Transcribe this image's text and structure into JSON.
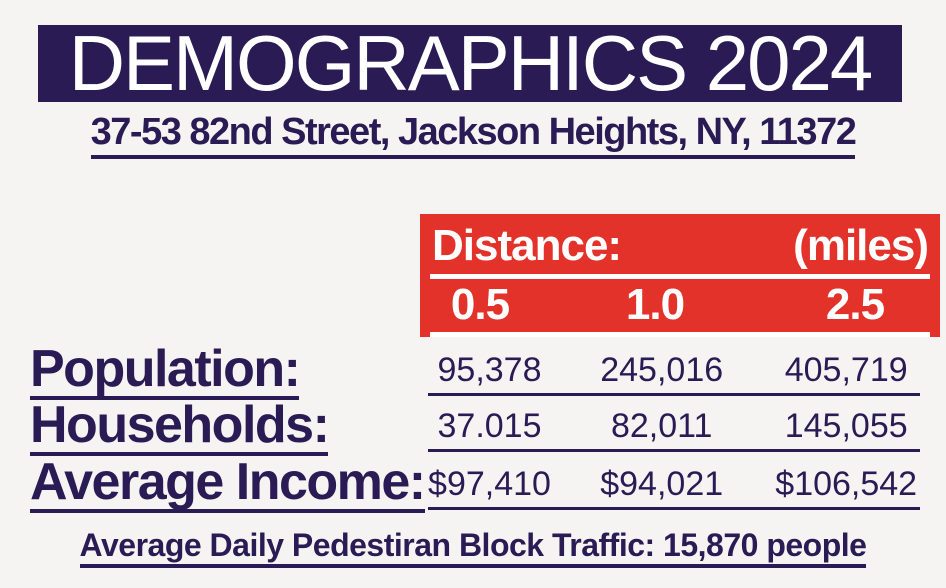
{
  "colors": {
    "navy": "#2b1b55",
    "red": "#e23229",
    "background": "#f5f4f2",
    "white": "#ffffff"
  },
  "header": {
    "title": "DEMOGRAPHICS 2024"
  },
  "address": "37-53 82nd Street, Jackson Heights, NY, 11372",
  "distance_header": {
    "label": "Distance:",
    "unit": "(miles)",
    "columns": [
      "0.5",
      "1.0",
      "2.5"
    ]
  },
  "table": {
    "rows": [
      {
        "label": "Population:",
        "values": [
          "95,378",
          "245,016",
          "405,719"
        ]
      },
      {
        "label": "Households:",
        "values": [
          "37.015",
          "82,011",
          "145,055"
        ]
      },
      {
        "label": "Average Income:",
        "values": [
          "$97,410",
          "$94,021",
          "$106,542"
        ]
      }
    ]
  },
  "footer": "Average Daily Pedestiran Block Traffic: 15,870 people"
}
